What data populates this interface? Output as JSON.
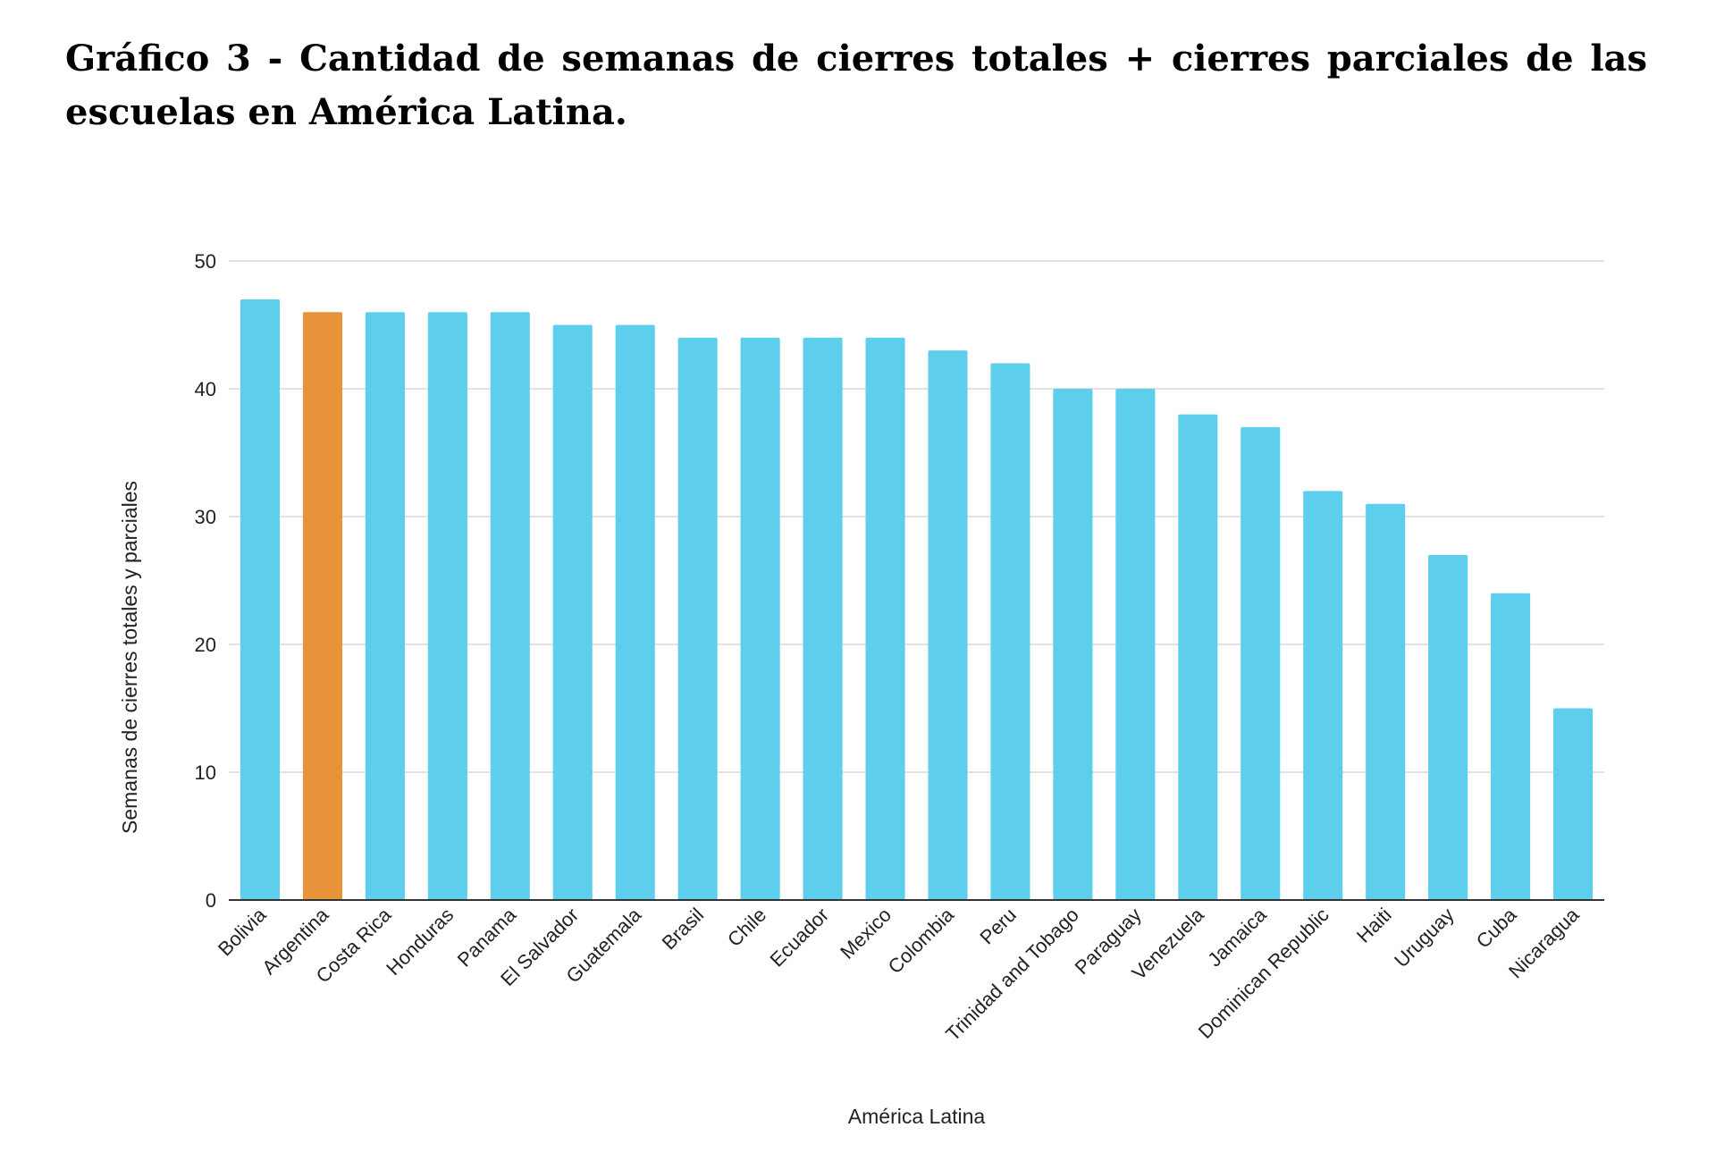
{
  "page": {
    "title": "Gráfico 3 - Cantidad de semanas de cierres totales + cierres parciales de las escuelas en América Latina."
  },
  "colors": {
    "bar": "#5dcfec",
    "highlight": "#e8923a",
    "grid": "#d9d9d9",
    "axis": "#333333"
  },
  "chart_data": {
    "type": "bar",
    "title": "Gráfico 3 - Cantidad de semanas de cierres totales + cierres parciales de las escuelas en América Latina.",
    "xlabel": "América Latina",
    "ylabel": "Semanas de cierres totales y parciales",
    "ylim": [
      0,
      50
    ],
    "yticks": [
      0,
      10,
      20,
      30,
      40,
      50
    ],
    "grid": true,
    "legend": "none",
    "highlight_category": "Argentina",
    "categories": [
      "Bolivia",
      "Argentina",
      "Costa Rica",
      "Honduras",
      "Panama",
      "El Salvador",
      "Guatemala",
      "Brasil",
      "Chile",
      "Ecuador",
      "Mexico",
      "Colombia",
      "Peru",
      "Trinidad and Tobago",
      "Paraguay",
      "Venezuela",
      "Jamaica",
      "Dominican Republic",
      "Haiti",
      "Uruguay",
      "Cuba",
      "Nicaragua"
    ],
    "values": [
      47,
      46,
      46,
      46,
      46,
      45,
      45,
      44,
      44,
      44,
      44,
      43,
      42,
      40,
      40,
      38,
      37,
      32,
      31,
      27,
      24,
      15
    ]
  }
}
